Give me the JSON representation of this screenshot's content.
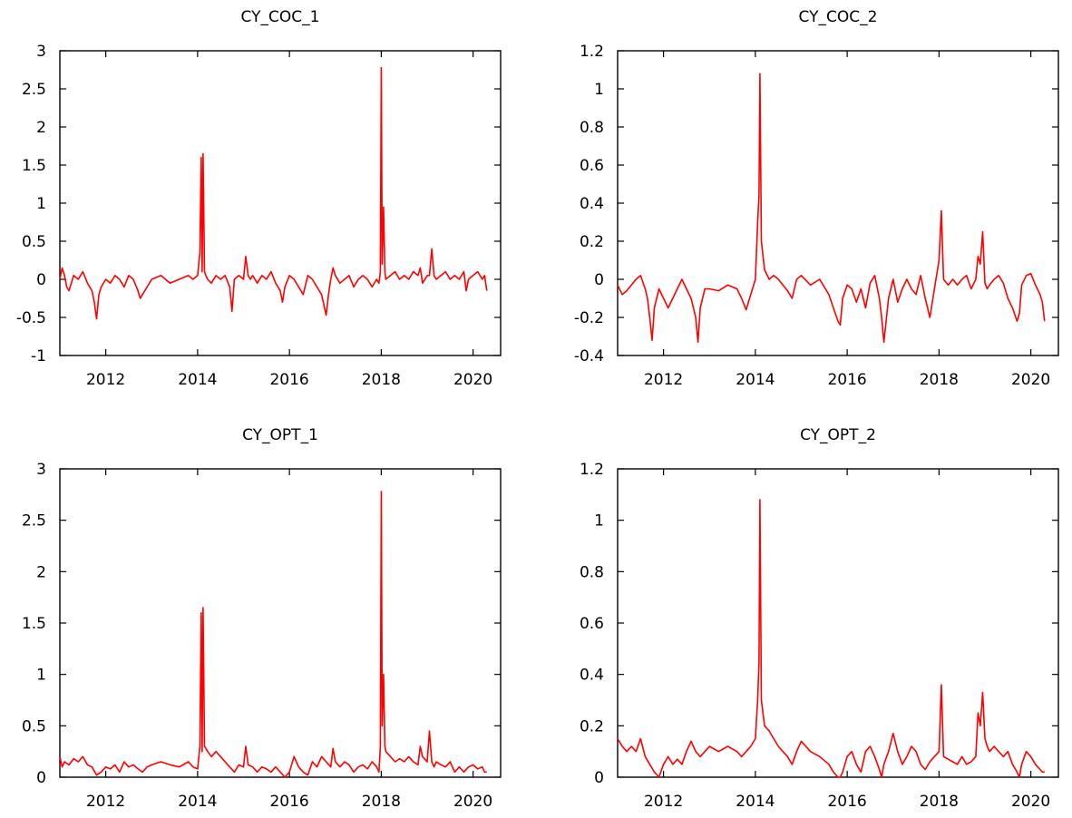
{
  "colors": {
    "series": "#ff0000",
    "axis": "#000000",
    "background": "#ffffff"
  },
  "chart_data": [
    {
      "type": "line",
      "title": "CY_COC_1",
      "xlabel": "",
      "ylabel": "",
      "xlim": [
        2011.0,
        2020.6
      ],
      "ylim": [
        -1,
        3
      ],
      "xticks": [
        2012,
        2014,
        2016,
        2018,
        2020
      ],
      "xtick_labels": [
        "2012",
        "2014",
        "2016",
        "2018",
        "2020"
      ],
      "yticks": [
        -1,
        -0.5,
        0,
        0.5,
        1,
        1.5,
        2,
        2.5,
        3
      ],
      "ytick_labels": [
        "-1",
        "-0.5",
        "0",
        "0.5",
        "1",
        "1.5",
        "2",
        "2.5",
        "3"
      ],
      "grid": false,
      "legend": "none",
      "series": [
        {
          "x": [
            2011.0,
            2011.05,
            2011.1,
            2011.15,
            2011.2,
            2011.3,
            2011.4,
            2011.5,
            2011.6,
            2011.7,
            2011.75,
            2011.8,
            2011.85,
            2011.9,
            2012.0,
            2012.1,
            2012.2,
            2012.3,
            2012.4,
            2012.5,
            2012.6,
            2012.7,
            2012.75,
            2012.8,
            2012.9,
            2013.0,
            2013.2,
            2013.4,
            2013.6,
            2013.8,
            2013.9,
            2014.0,
            2014.05,
            2014.08,
            2014.1,
            2014.12,
            2014.15,
            2014.18,
            2014.22,
            2014.3,
            2014.4,
            2014.5,
            2014.6,
            2014.7,
            2014.75,
            2014.8,
            2014.9,
            2015.0,
            2015.05,
            2015.1,
            2015.15,
            2015.2,
            2015.3,
            2015.4,
            2015.5,
            2015.6,
            2015.7,
            2015.8,
            2015.85,
            2015.9,
            2016.0,
            2016.1,
            2016.2,
            2016.3,
            2016.4,
            2016.5,
            2016.6,
            2016.7,
            2016.8,
            2016.85,
            2016.9,
            2016.95,
            2017.0,
            2017.1,
            2017.2,
            2017.3,
            2017.4,
            2017.5,
            2017.6,
            2017.7,
            2017.8,
            2017.9,
            2017.95,
            2017.98,
            2018.0,
            2018.02,
            2018.05,
            2018.08,
            2018.1,
            2018.2,
            2018.3,
            2018.4,
            2018.5,
            2018.6,
            2018.7,
            2018.8,
            2018.85,
            2018.9,
            2019.0,
            2019.05,
            2019.1,
            2019.15,
            2019.2,
            2019.3,
            2019.4,
            2019.5,
            2019.6,
            2019.7,
            2019.8,
            2019.85,
            2019.9,
            2020.0,
            2020.1,
            2020.2,
            2020.25,
            2020.3
          ],
          "y": [
            0.0,
            0.15,
            0.05,
            -0.1,
            -0.15,
            0.05,
            0.0,
            0.1,
            -0.05,
            -0.15,
            -0.3,
            -0.52,
            -0.2,
            -0.1,
            0.0,
            -0.05,
            0.05,
            0.0,
            -0.1,
            0.05,
            0.0,
            -0.15,
            -0.25,
            -0.2,
            -0.1,
            0.0,
            0.05,
            -0.05,
            0.0,
            0.05,
            0.0,
            0.05,
            0.35,
            1.6,
            0.1,
            1.65,
            0.1,
            0.05,
            0.0,
            -0.05,
            0.05,
            0.0,
            0.05,
            -0.1,
            -0.42,
            0.0,
            0.05,
            0.0,
            0.3,
            0.05,
            0.0,
            0.05,
            -0.05,
            0.05,
            0.0,
            0.1,
            -0.05,
            -0.15,
            -0.3,
            -0.1,
            0.05,
            0.0,
            -0.1,
            -0.2,
            0.05,
            0.0,
            -0.1,
            -0.2,
            -0.47,
            -0.2,
            0.0,
            0.15,
            0.05,
            -0.05,
            0.0,
            0.05,
            -0.1,
            0.0,
            0.05,
            0.0,
            -0.1,
            0.0,
            -0.05,
            0.1,
            2.78,
            0.2,
            0.95,
            0.1,
            0.0,
            0.05,
            0.1,
            0.0,
            0.05,
            0.0,
            0.1,
            0.05,
            0.15,
            -0.05,
            0.05,
            0.05,
            0.4,
            0.05,
            0.0,
            0.05,
            0.1,
            0.0,
            0.05,
            0.0,
            0.1,
            -0.15,
            0.0,
            0.05,
            0.1,
            0.0,
            0.05,
            -0.15
          ]
        }
      ]
    },
    {
      "type": "line",
      "title": "CY_COC_2",
      "xlabel": "",
      "ylabel": "",
      "xlim": [
        2011.0,
        2020.6
      ],
      "ylim": [
        -0.4,
        1.2
      ],
      "xticks": [
        2012,
        2014,
        2016,
        2018,
        2020
      ],
      "xtick_labels": [
        "2012",
        "2014",
        "2016",
        "2018",
        "2020"
      ],
      "yticks": [
        -0.4,
        -0.2,
        0,
        0.2,
        0.4,
        0.6,
        0.8,
        1,
        1.2
      ],
      "ytick_labels": [
        "-0.4",
        "-0.2",
        "0",
        "0.2",
        "0.4",
        "0.6",
        "0.8",
        "1",
        "1.2"
      ],
      "grid": false,
      "legend": "none",
      "series": [
        {
          "x": [
            2011.0,
            2011.1,
            2011.2,
            2011.3,
            2011.4,
            2011.5,
            2011.6,
            2011.65,
            2011.7,
            2011.75,
            2011.8,
            2011.9,
            2012.0,
            2012.1,
            2012.2,
            2012.3,
            2012.4,
            2012.5,
            2012.6,
            2012.7,
            2012.75,
            2012.8,
            2012.9,
            2013.0,
            2013.2,
            2013.4,
            2013.6,
            2013.7,
            2013.8,
            2013.9,
            2014.0,
            2014.05,
            2014.08,
            2014.1,
            2014.13,
            2014.2,
            2014.3,
            2014.4,
            2014.5,
            2014.6,
            2014.7,
            2014.8,
            2014.9,
            2015.0,
            2015.2,
            2015.4,
            2015.6,
            2015.7,
            2015.8,
            2015.85,
            2015.9,
            2016.0,
            2016.1,
            2016.2,
            2016.3,
            2016.4,
            2016.5,
            2016.6,
            2016.7,
            2016.75,
            2016.8,
            2016.9,
            2017.0,
            2017.1,
            2017.2,
            2017.3,
            2017.4,
            2017.5,
            2017.6,
            2017.7,
            2017.8,
            2017.9,
            2018.0,
            2018.05,
            2018.1,
            2018.2,
            2018.3,
            2018.4,
            2018.5,
            2018.6,
            2018.7,
            2018.8,
            2018.85,
            2018.9,
            2018.95,
            2019.0,
            2019.05,
            2019.1,
            2019.2,
            2019.3,
            2019.4,
            2019.5,
            2019.6,
            2019.7,
            2019.75,
            2019.8,
            2019.9,
            2020.0,
            2020.1,
            2020.2,
            2020.25,
            2020.3
          ],
          "y": [
            -0.03,
            -0.08,
            -0.06,
            -0.03,
            0.0,
            0.02,
            -0.05,
            -0.1,
            -0.2,
            -0.32,
            -0.15,
            -0.05,
            -0.1,
            -0.15,
            -0.1,
            -0.05,
            0.0,
            -0.05,
            -0.1,
            -0.2,
            -0.33,
            -0.15,
            -0.05,
            -0.05,
            -0.06,
            -0.03,
            -0.05,
            -0.1,
            -0.16,
            -0.08,
            0.0,
            0.3,
            0.44,
            1.08,
            0.2,
            0.05,
            0.0,
            0.02,
            0.0,
            -0.03,
            -0.06,
            -0.1,
            0.0,
            0.02,
            -0.03,
            0.0,
            -0.08,
            -0.15,
            -0.22,
            -0.24,
            -0.1,
            -0.03,
            -0.05,
            -0.12,
            -0.05,
            -0.15,
            -0.02,
            0.02,
            -0.1,
            -0.2,
            -0.33,
            -0.1,
            0.0,
            -0.12,
            -0.05,
            0.0,
            -0.05,
            -0.08,
            0.02,
            -0.1,
            -0.2,
            -0.05,
            0.1,
            0.36,
            0.0,
            -0.03,
            0.0,
            -0.03,
            0.0,
            0.02,
            -0.05,
            0.0,
            0.12,
            0.08,
            0.25,
            -0.02,
            -0.05,
            -0.03,
            0.0,
            0.02,
            -0.02,
            -0.1,
            -0.15,
            -0.22,
            -0.18,
            -0.03,
            0.02,
            0.03,
            -0.03,
            -0.08,
            -0.12,
            -0.22
          ]
        }
      ]
    },
    {
      "type": "line",
      "title": "CY_OPT_1",
      "xlabel": "",
      "ylabel": "",
      "xlim": [
        2011.0,
        2020.6
      ],
      "ylim": [
        0,
        3
      ],
      "xticks": [
        2012,
        2014,
        2016,
        2018,
        2020
      ],
      "xtick_labels": [
        "2012",
        "2014",
        "2016",
        "2018",
        "2020"
      ],
      "yticks": [
        0,
        0.5,
        1,
        1.5,
        2,
        2.5,
        3
      ],
      "ytick_labels": [
        "0",
        "0.5",
        "1",
        "1.5",
        "2",
        "2.5",
        "3"
      ],
      "grid": false,
      "legend": "none",
      "series": [
        {
          "x": [
            2011.0,
            2011.05,
            2011.1,
            2011.2,
            2011.3,
            2011.4,
            2011.5,
            2011.6,
            2011.7,
            2011.8,
            2011.9,
            2012.0,
            2012.1,
            2012.2,
            2012.3,
            2012.4,
            2012.5,
            2012.6,
            2012.7,
            2012.8,
            2012.9,
            2013.0,
            2013.2,
            2013.4,
            2013.6,
            2013.8,
            2013.9,
            2014.0,
            2014.05,
            2014.08,
            2014.1,
            2014.12,
            2014.15,
            2014.18,
            2014.22,
            2014.3,
            2014.4,
            2014.5,
            2014.6,
            2014.7,
            2014.8,
            2014.9,
            2015.0,
            2015.05,
            2015.1,
            2015.2,
            2015.3,
            2015.4,
            2015.5,
            2015.6,
            2015.7,
            2015.8,
            2015.9,
            2016.0,
            2016.1,
            2016.2,
            2016.3,
            2016.4,
            2016.5,
            2016.6,
            2016.7,
            2016.8,
            2016.9,
            2016.95,
            2017.0,
            2017.1,
            2017.2,
            2017.3,
            2017.4,
            2017.5,
            2017.6,
            2017.7,
            2017.8,
            2017.9,
            2017.95,
            2017.98,
            2018.0,
            2018.02,
            2018.05,
            2018.08,
            2018.1,
            2018.2,
            2018.3,
            2018.4,
            2018.5,
            2018.6,
            2018.7,
            2018.8,
            2018.85,
            2018.9,
            2019.0,
            2019.05,
            2019.1,
            2019.15,
            2019.2,
            2019.3,
            2019.4,
            2019.5,
            2019.6,
            2019.7,
            2019.8,
            2019.9,
            2020.0,
            2020.1,
            2020.2,
            2020.25,
            2020.3
          ],
          "y": [
            0.2,
            0.1,
            0.15,
            0.12,
            0.18,
            0.15,
            0.2,
            0.12,
            0.1,
            0.02,
            0.05,
            0.1,
            0.08,
            0.12,
            0.05,
            0.15,
            0.1,
            0.12,
            0.08,
            0.05,
            0.1,
            0.12,
            0.15,
            0.12,
            0.1,
            0.15,
            0.1,
            0.08,
            0.3,
            1.6,
            0.25,
            1.65,
            0.3,
            0.28,
            0.25,
            0.2,
            0.25,
            0.2,
            0.15,
            0.1,
            0.05,
            0.12,
            0.1,
            0.3,
            0.12,
            0.1,
            0.05,
            0.1,
            0.08,
            0.05,
            0.1,
            0.05,
            0.0,
            0.05,
            0.2,
            0.1,
            0.05,
            0.02,
            0.15,
            0.1,
            0.2,
            0.15,
            0.1,
            0.28,
            0.15,
            0.1,
            0.15,
            0.12,
            0.05,
            0.1,
            0.12,
            0.08,
            0.15,
            0.1,
            0.05,
            0.3,
            2.78,
            0.5,
            1.0,
            0.3,
            0.25,
            0.2,
            0.15,
            0.18,
            0.15,
            0.2,
            0.15,
            0.12,
            0.3,
            0.2,
            0.15,
            0.45,
            0.15,
            0.1,
            0.15,
            0.12,
            0.1,
            0.15,
            0.05,
            0.1,
            0.05,
            0.1,
            0.12,
            0.08,
            0.1,
            0.05,
            0.05
          ]
        }
      ]
    },
    {
      "type": "line",
      "title": "CY_OPT_2",
      "xlabel": "",
      "ylabel": "",
      "xlim": [
        2011.0,
        2020.6
      ],
      "ylim": [
        0,
        1.2
      ],
      "xticks": [
        2012,
        2014,
        2016,
        2018,
        2020
      ],
      "xtick_labels": [
        "2012",
        "2014",
        "2016",
        "2018",
        "2020"
      ],
      "yticks": [
        0,
        0.2,
        0.4,
        0.6,
        0.8,
        1,
        1.2
      ],
      "ytick_labels": [
        "0",
        "0.2",
        "0.4",
        "0.6",
        "0.8",
        "1",
        "1.2"
      ],
      "grid": false,
      "legend": "none",
      "series": [
        {
          "x": [
            2011.0,
            2011.1,
            2011.2,
            2011.3,
            2011.4,
            2011.5,
            2011.6,
            2011.7,
            2011.8,
            2011.9,
            2012.0,
            2012.1,
            2012.2,
            2012.3,
            2012.4,
            2012.5,
            2012.6,
            2012.7,
            2012.8,
            2012.9,
            2013.0,
            2013.2,
            2013.4,
            2013.6,
            2013.7,
            2013.8,
            2013.9,
            2014.0,
            2014.05,
            2014.08,
            2014.1,
            2014.13,
            2014.2,
            2014.3,
            2014.4,
            2014.5,
            2014.6,
            2014.7,
            2014.8,
            2014.9,
            2015.0,
            2015.2,
            2015.4,
            2015.6,
            2015.7,
            2015.8,
            2015.85,
            2015.9,
            2016.0,
            2016.1,
            2016.2,
            2016.3,
            2016.4,
            2016.5,
            2016.6,
            2016.7,
            2016.75,
            2016.8,
            2016.9,
            2017.0,
            2017.1,
            2017.2,
            2017.3,
            2017.4,
            2017.5,
            2017.6,
            2017.7,
            2017.8,
            2017.9,
            2018.0,
            2018.05,
            2018.1,
            2018.2,
            2018.3,
            2018.4,
            2018.5,
            2018.6,
            2018.7,
            2018.8,
            2018.85,
            2018.9,
            2018.95,
            2019.0,
            2019.05,
            2019.1,
            2019.2,
            2019.3,
            2019.4,
            2019.5,
            2019.6,
            2019.7,
            2019.75,
            2019.8,
            2019.9,
            2020.0,
            2020.1,
            2020.2,
            2020.25,
            2020.3
          ],
          "y": [
            0.15,
            0.12,
            0.1,
            0.12,
            0.1,
            0.15,
            0.08,
            0.05,
            0.02,
            0.0,
            0.05,
            0.08,
            0.05,
            0.07,
            0.05,
            0.1,
            0.14,
            0.1,
            0.08,
            0.1,
            0.12,
            0.1,
            0.12,
            0.1,
            0.08,
            0.1,
            0.12,
            0.15,
            0.3,
            0.45,
            1.08,
            0.3,
            0.2,
            0.18,
            0.15,
            0.12,
            0.1,
            0.08,
            0.05,
            0.1,
            0.14,
            0.1,
            0.08,
            0.05,
            0.02,
            0.0,
            0.0,
            0.02,
            0.08,
            0.1,
            0.05,
            0.02,
            0.1,
            0.12,
            0.08,
            0.03,
            0.0,
            0.05,
            0.1,
            0.17,
            0.1,
            0.05,
            0.08,
            0.12,
            0.1,
            0.05,
            0.03,
            0.06,
            0.08,
            0.1,
            0.36,
            0.08,
            0.07,
            0.06,
            0.05,
            0.08,
            0.05,
            0.06,
            0.08,
            0.25,
            0.2,
            0.33,
            0.15,
            0.12,
            0.1,
            0.12,
            0.1,
            0.08,
            0.1,
            0.05,
            0.02,
            0.0,
            0.05,
            0.1,
            0.08,
            0.05,
            0.03,
            0.02,
            0.02
          ]
        }
      ]
    }
  ]
}
